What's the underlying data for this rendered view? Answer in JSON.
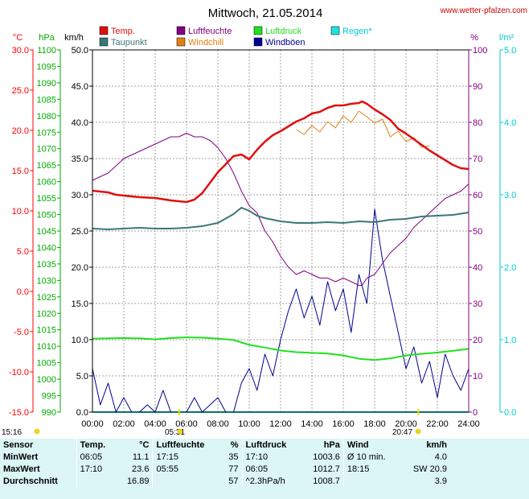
{
  "page": {
    "title": "Mittwoch, 21.05.2014",
    "site": "www.wetter-pfalzen.com"
  },
  "colors": {
    "temp": "#e01010",
    "taupunkt": "#3a7878",
    "luftfeuchte": "#800080",
    "windchill": "#e08010",
    "luftdruck": "#20e020",
    "windboeen": "#000090",
    "regen": "#20e0e0"
  },
  "chart_data": {
    "type": "line",
    "title": "Mittwoch, 21.05.2014",
    "x_ticks": [
      "00:00",
      "02:00",
      "04:00",
      "06:00",
      "08:00",
      "10:00",
      "12:00",
      "14:00",
      "16:00",
      "18:00",
      "20:00",
      "22:00",
      "24:00"
    ],
    "axes": [
      {
        "unit": "°C",
        "ticks": [
          "30.0",
          "25.0",
          "20.0",
          "15.0",
          "10.0",
          "5.0",
          "0.0",
          "-5.0",
          "-10.0",
          "-15.0"
        ],
        "ylim": [
          -15,
          30
        ]
      },
      {
        "unit": "hPa",
        "ticks": [
          "1100",
          "1095",
          "1090",
          "1085",
          "1080",
          "1075",
          "1070",
          "1065",
          "1060",
          "1055",
          "1050",
          "1045",
          "1040",
          "1035",
          "1030",
          "1025",
          "1020",
          "1015",
          "1010",
          "1005",
          "1000",
          "995",
          "990"
        ],
        "ylim": [
          990,
          1100
        ]
      },
      {
        "unit": "km/h",
        "ticks": [
          "50.0",
          "45.0",
          "40.0",
          "35.0",
          "30.0",
          "25.0",
          "20.0",
          "15.0",
          "10.0",
          "5.0",
          "0.0"
        ],
        "ylim": [
          0,
          50
        ]
      },
      {
        "unit": "%",
        "ticks": [
          "100",
          "90",
          "80",
          "70",
          "60",
          "50",
          "40",
          "30",
          "20",
          "10",
          "0"
        ],
        "ylim": [
          0,
          100
        ]
      },
      {
        "unit": "l/m²",
        "ticks": [
          "5.0",
          "4.0",
          "3.0",
          "2.0",
          "1.0",
          "0.0"
        ],
        "ylim": [
          0,
          5
        ]
      }
    ],
    "legend": [
      {
        "name": "Temp.",
        "color": "#e01010"
      },
      {
        "name": "Luftfeuchte",
        "color": "#800080"
      },
      {
        "name": "Luftdruck",
        "color": "#20e020"
      },
      {
        "name": "Regen*",
        "color": "#20e0e0"
      },
      {
        "name": "Taupunkt",
        "color": "#3a7878"
      },
      {
        "name": "Windchill",
        "color": "#e08010"
      },
      {
        "name": "Windböen",
        "color": "#000090"
      }
    ],
    "series": [
      {
        "name": "Temp.",
        "axis": "°C",
        "x": [
          0,
          0.5,
          1,
          1.5,
          2,
          3,
          4,
          5,
          5.5,
          6,
          6.5,
          7,
          7.5,
          8,
          8.5,
          9,
          9.5,
          10,
          10.5,
          11,
          11.5,
          12,
          12.5,
          13,
          13.5,
          14,
          14.5,
          15,
          15.5,
          16,
          16.5,
          17,
          17.2,
          17.5,
          18,
          18.5,
          19,
          19.5,
          20,
          20.5,
          21,
          21.5,
          22,
          22.5,
          23,
          23.5,
          24
        ],
        "y": [
          12.5,
          12.4,
          12.3,
          12,
          11.9,
          11.7,
          11.6,
          11.3,
          11.2,
          11.1,
          11.4,
          12.2,
          13.5,
          14.8,
          15.8,
          16.8,
          17,
          16.4,
          17.6,
          18.6,
          19.4,
          19.9,
          20.5,
          21.1,
          21.5,
          22.1,
          22.3,
          22.8,
          23.1,
          23.1,
          23.3,
          23.4,
          23.6,
          23.3,
          22.6,
          22,
          21.3,
          20.2,
          19.6,
          18.9,
          18.2,
          17.5,
          16.9,
          16.3,
          15.7,
          15.3,
          15.2
        ]
      },
      {
        "name": "Windchill",
        "axis": "°C",
        "x": [
          13,
          13.5,
          14,
          14.5,
          15,
          15.5,
          16,
          16.5,
          17,
          17.5,
          18,
          18.5,
          19,
          19.5,
          20,
          20.5,
          21,
          21.5
        ],
        "y": [
          20.1,
          19.5,
          20.6,
          19.8,
          21.1,
          20.3,
          21.8,
          21,
          22.4,
          21.7,
          20.9,
          21.4,
          19.2,
          19.9,
          18.6,
          19.1,
          17.9,
          18.1
        ]
      },
      {
        "name": "Taupunkt",
        "axis": "°C",
        "x": [
          0,
          1,
          2,
          3,
          4,
          5,
          6,
          7,
          8,
          9,
          9.5,
          10,
          10.5,
          11,
          12,
          13,
          14,
          15,
          16,
          17,
          18,
          19,
          20,
          21,
          22,
          23,
          24
        ],
        "y": [
          7.8,
          7.7,
          7.8,
          7.9,
          7.8,
          7.8,
          7.9,
          8.1,
          8.5,
          9.6,
          10.4,
          10,
          9.4,
          9.1,
          8.7,
          8.5,
          8.5,
          8.6,
          8.5,
          8.7,
          8.6,
          8.9,
          9,
          9.3,
          9.4,
          9.5,
          9.8
        ]
      },
      {
        "name": "Luftfeuchte",
        "axis": "%",
        "x": [
          0,
          0.5,
          1,
          1.5,
          2,
          3,
          4,
          4.5,
          5,
          5.5,
          6,
          6.5,
          7,
          7.5,
          8,
          8.5,
          9,
          9.5,
          10,
          10.5,
          11,
          11.5,
          12,
          12.5,
          13,
          13.5,
          14,
          14.5,
          15,
          15.5,
          16,
          16.5,
          17,
          17.2,
          17.5,
          18,
          18.5,
          19,
          19.5,
          20,
          20.5,
          21,
          21.5,
          22,
          22.5,
          23,
          23.5,
          24
        ],
        "y": [
          64,
          65,
          66,
          68,
          70,
          72,
          74,
          75,
          76,
          76,
          77,
          76,
          76,
          75,
          73,
          70,
          66,
          61,
          57,
          55,
          50,
          47,
          43,
          40,
          38,
          39,
          38,
          37,
          37,
          36,
          37,
          36,
          35,
          35,
          37,
          38,
          41,
          44,
          46,
          48,
          51,
          53,
          55,
          57,
          59,
          60,
          61,
          63
        ]
      },
      {
        "name": "Luftdruck",
        "axis": "hPa",
        "x": [
          0,
          1,
          2,
          3,
          4,
          5,
          6,
          7,
          8,
          9,
          10,
          11,
          12,
          13,
          14,
          15,
          16,
          17,
          18,
          19,
          20,
          21,
          22,
          23,
          24
        ],
        "y": [
          1012.3,
          1012.4,
          1012.5,
          1012.4,
          1012.1,
          1012.5,
          1012.7,
          1012.6,
          1012.3,
          1011.9,
          1010.4,
          1009.6,
          1008.7,
          1008.2,
          1008,
          1007.8,
          1007.2,
          1006.2,
          1005.8,
          1006.3,
          1007.2,
          1007.7,
          1008.1,
          1008.6,
          1009.2
        ]
      },
      {
        "name": "Windböen",
        "axis": "km/h",
        "x": [
          0,
          0.5,
          1,
          1.5,
          2,
          2.5,
          3,
          3.5,
          4,
          4.5,
          5,
          5.5,
          6,
          6.5,
          7,
          7.5,
          8,
          8.5,
          9,
          9.5,
          10,
          10.5,
          11,
          11.5,
          12,
          12.5,
          13,
          13.5,
          14,
          14.5,
          15,
          15.5,
          16,
          16.5,
          17,
          17.5,
          18,
          18.5,
          19,
          19.5,
          20,
          20.5,
          21,
          21.5,
          22,
          22.5,
          23,
          23.5,
          24
        ],
        "y": [
          6,
          1,
          4,
          0,
          2,
          0,
          0,
          1,
          0,
          3,
          0,
          0,
          0,
          2,
          0,
          1,
          2,
          0,
          0,
          4,
          6,
          3,
          8,
          5,
          10,
          14,
          17,
          13,
          16,
          12,
          18,
          14,
          17,
          11,
          19,
          15,
          28,
          21,
          16,
          11,
          6,
          9,
          4,
          7,
          2,
          8,
          5,
          3,
          6
        ]
      },
      {
        "name": "Regen*",
        "axis": "l/m²",
        "x": [
          0,
          24
        ],
        "y": [
          0,
          0
        ]
      }
    ],
    "markers": [
      {
        "label": "15:16"
      },
      {
        "label": "05:31"
      },
      {
        "label": "20:47"
      }
    ]
  },
  "footer": {
    "headers": {
      "sensor": "Sensor",
      "temp": "Temp.",
      "temp_unit": "°C",
      "feuchte": "Luftfeuchte",
      "feuchte_unit": "%",
      "druck": "Luftdruck",
      "druck_unit": "hPa",
      "wind": "Wind",
      "wind_unit": "km/h"
    },
    "rows": [
      {
        "label": "MinWert",
        "t_time": "06:05",
        "t_val": "11.1",
        "f_time": "17:15",
        "f_val": "35",
        "d_time": "17:10",
        "d_val": "1003.6",
        "w_time": "Ø 10 min.",
        "w_val": "4.0"
      },
      {
        "label": "MaxWert",
        "t_time": "17:10",
        "t_val": "23.6",
        "f_time": "05:55",
        "f_val": "77",
        "d_time": "06:05",
        "d_val": "1012.7",
        "w_time": "18:15",
        "w_val": "SW 20.9"
      },
      {
        "label": "Durchschnitt",
        "t_time": "",
        "t_val": "16.89",
        "f_time": "",
        "f_val": "57",
        "d_time": "^2.3hPa/h",
        "d_val": "1008.7",
        "w_time": "",
        "w_val": "3.9"
      }
    ]
  }
}
